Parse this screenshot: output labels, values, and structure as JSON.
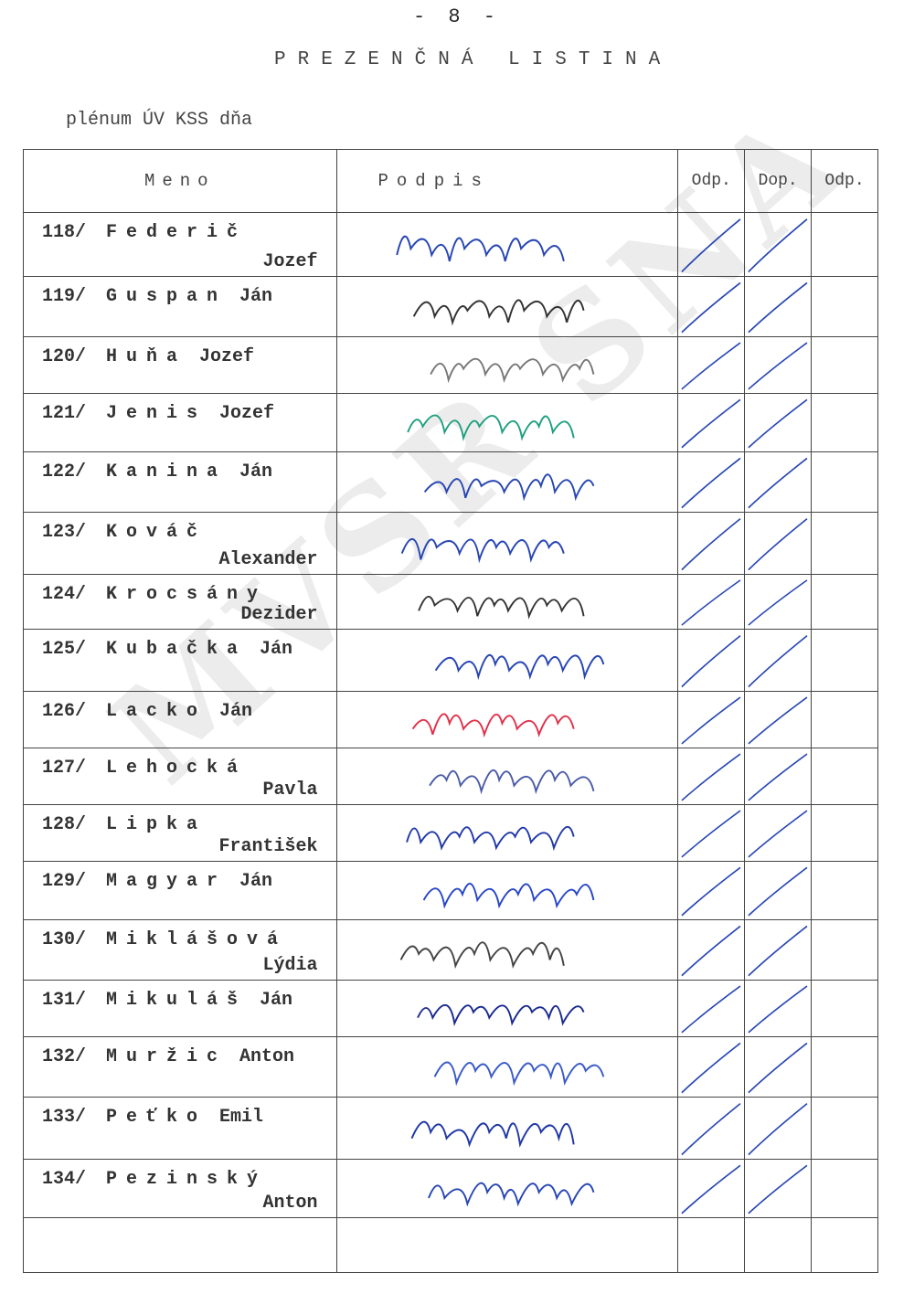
{
  "page_number": "- 8 -",
  "title": "PREZENČNÁ LISTINA",
  "subtitle": "plénum ÚV KSS dňa",
  "watermark": "MVSR SNA",
  "table": {
    "headers": [
      "Meno",
      "Podpis",
      "Odp.",
      "Dop.",
      "Odp."
    ],
    "rows": [
      {
        "num": "118/",
        "surname": "Federič",
        "first": "Jozef",
        "two_line": true,
        "odp": true,
        "dop": true,
        "odp2": false,
        "ink": "#2846b4",
        "h": 70
      },
      {
        "num": "119/",
        "surname": "Guspan",
        "first": "Ján",
        "two_line": false,
        "odp": true,
        "dop": true,
        "odp2": false,
        "ink": "#333333",
        "h": 66
      },
      {
        "num": "120/",
        "surname": "Huňa",
        "first": "Jozef",
        "two_line": false,
        "odp": true,
        "dop": true,
        "odp2": false,
        "ink": "#777777",
        "h": 62
      },
      {
        "num": "121/",
        "surname": "Jenis",
        "first": "Jozef",
        "two_line": false,
        "odp": true,
        "dop": true,
        "odp2": false,
        "ink": "#20a080",
        "h": 64
      },
      {
        "num": "122/",
        "surname": "Kanina",
        "first": "Ján",
        "two_line": false,
        "odp": true,
        "dop": true,
        "odp2": false,
        "ink": "#2846b4",
        "h": 66
      },
      {
        "num": "123/",
        "surname": "Kováč",
        "first": "Alexander",
        "two_line": true,
        "odp": true,
        "dop": true,
        "odp2": false,
        "ink": "#2846b4",
        "h": 68
      },
      {
        "num": "124/",
        "surname": "Krocsány",
        "first": "Dezider",
        "two_line": true,
        "odp": true,
        "dop": true,
        "odp2": false,
        "ink": "#333333",
        "h": 60
      },
      {
        "num": "125/",
        "surname": "Kubačka",
        "first": "Ján",
        "two_line": false,
        "odp": true,
        "dop": true,
        "odp2": false,
        "ink": "#2846b4",
        "h": 68
      },
      {
        "num": "126/",
        "surname": "Lacko",
        "first": "Ján",
        "two_line": false,
        "odp": true,
        "dop": true,
        "odp2": false,
        "ink": "#e0304a",
        "h": 62
      },
      {
        "num": "127/",
        "surname": "Lehocká",
        "first": "Pavla",
        "two_line": true,
        "odp": true,
        "dop": true,
        "odp2": false,
        "ink": "#4a5aa8",
        "h": 62
      },
      {
        "num": "128/",
        "surname": "Lipka",
        "first": "František",
        "two_line": true,
        "odp": true,
        "dop": true,
        "odp2": false,
        "ink": "#2038a8",
        "h": 62
      },
      {
        "num": "129/",
        "surname": "Magyar",
        "first": "Ján",
        "two_line": false,
        "odp": true,
        "dop": true,
        "odp2": false,
        "ink": "#2846c8",
        "h": 64
      },
      {
        "num": "130/",
        "surname": "Miklášová",
        "first": "Lýdia",
        "two_line": true,
        "odp": true,
        "dop": true,
        "odp2": false,
        "ink": "#444444",
        "h": 66
      },
      {
        "num": "131/",
        "surname": "Mikuláš",
        "first": "Ján",
        "two_line": false,
        "odp": true,
        "dop": true,
        "odp2": false,
        "ink": "#1a2a90",
        "h": 62
      },
      {
        "num": "132/",
        "surname": "Muržic",
        "first": "Anton",
        "two_line": false,
        "odp": true,
        "dop": true,
        "odp2": false,
        "ink": "#3a5ac8",
        "h": 66
      },
      {
        "num": "133/",
        "surname": "Peťko",
        "first": "Emil",
        "two_line": false,
        "odp": true,
        "dop": true,
        "odp2": false,
        "ink": "#2038a8",
        "h": 68
      },
      {
        "num": "134/",
        "surname": "Pezinský",
        "first": "Anton",
        "two_line": true,
        "odp": true,
        "dop": true,
        "odp2": false,
        "ink": "#2846b4",
        "h": 64
      },
      {
        "num": "",
        "surname": "",
        "first": "",
        "two_line": false,
        "odp": false,
        "dop": false,
        "odp2": false,
        "ink": "#2846b4",
        "h": 60
      }
    ]
  },
  "colors": {
    "ink_mark": "#2846b4",
    "paper": "#ffffff",
    "type": "#333333"
  }
}
